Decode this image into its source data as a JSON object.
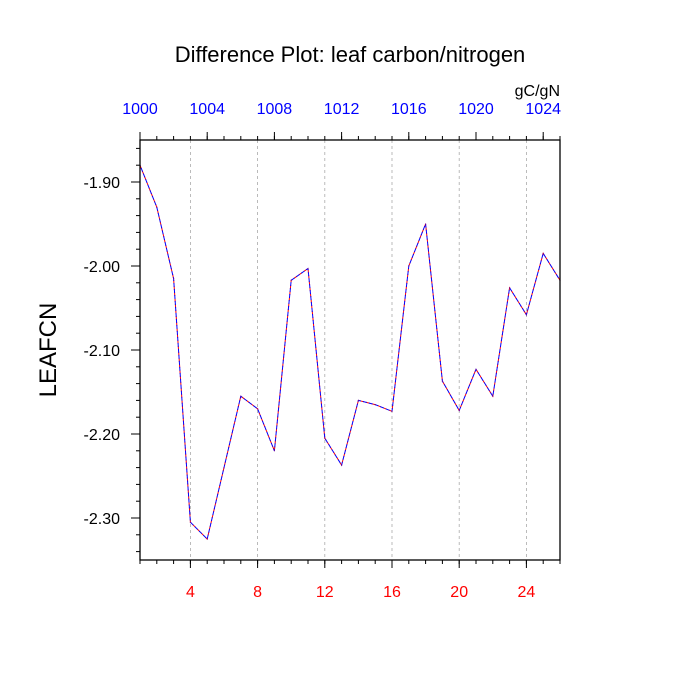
{
  "chart_data": {
    "type": "line",
    "title": "Difference Plot: leaf carbon/nitrogen",
    "ylabel": "LEAFCN",
    "units": "gC/gN",
    "xlim": [
      1,
      26
    ],
    "ylim": [
      -2.35,
      -1.85
    ],
    "yticks": [
      -2.3,
      -2.2,
      -2.1,
      -2.0,
      -1.9
    ],
    "ytick_labels": [
      "-2.30",
      "-2.20",
      "-2.10",
      "-2.00",
      "-1.90"
    ],
    "bottom_xticks": [
      4,
      8,
      12,
      16,
      20,
      24
    ],
    "bottom_xtick_labels": [
      "4",
      "8",
      "12",
      "16",
      "20",
      "24"
    ],
    "top_xticks": [
      1,
      5,
      9,
      13,
      17,
      21,
      25
    ],
    "top_xtick_labels": [
      "1000",
      "1004",
      "1008",
      "1012",
      "1016",
      "1020",
      "1024"
    ],
    "grid": "vertical dashed at bottom ticks",
    "colors": {
      "bottom_axis": "#ff0000",
      "top_axis": "#0000ff",
      "series_a": "#ff0000",
      "series_b": "#0000ff",
      "grid": "#aaaaaa"
    },
    "series": [
      {
        "name": "difference",
        "x": [
          1,
          2,
          3,
          4,
          5,
          6,
          7,
          8,
          9,
          10,
          11,
          12,
          13,
          14,
          15,
          16,
          17,
          18,
          19,
          20,
          21,
          22,
          23,
          24,
          25,
          26
        ],
        "values": [
          -1.88,
          -1.93,
          -2.015,
          -2.305,
          -2.325,
          -2.24,
          -2.155,
          -2.17,
          -2.22,
          -2.017,
          -2.003,
          -2.205,
          -2.237,
          -2.16,
          -2.165,
          -2.173,
          -2.0,
          -1.95,
          -2.137,
          -2.172,
          -2.123,
          -2.155,
          -2.026,
          -2.058,
          -1.985,
          -2.017
        ]
      }
    ]
  }
}
